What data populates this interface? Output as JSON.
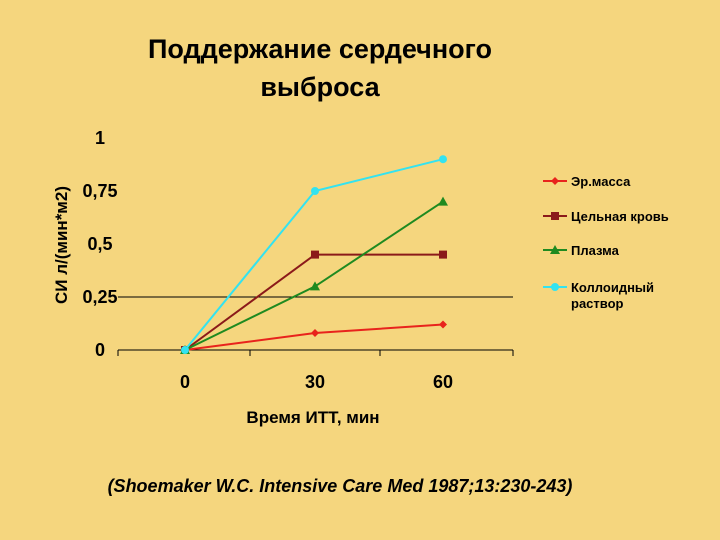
{
  "title_line1": "Поддержание сердечного",
  "title_line2": "выброса",
  "citation": "(Shoemaker W.C. Intensive Care Med 1987;13:230-243)",
  "chart_data": {
    "type": "line",
    "xlabel": "Время ИТТ, мин",
    "ylabel": "СИ л/(мин*м2)",
    "categories": [
      "0",
      "30",
      "60"
    ],
    "yticks": [
      "0",
      "0,25",
      "0,5",
      "0,75",
      "1"
    ],
    "ylim": [
      0,
      1
    ],
    "grid": "horizontal lines at 0.25",
    "legend": "right",
    "series": [
      {
        "name": "Эр.масса",
        "values": [
          0,
          0.08,
          0.12
        ],
        "color": "#e8231c",
        "marker": "diamond"
      },
      {
        "name": "Цельная кровь",
        "values": [
          0,
          0.45,
          0.45
        ],
        "color": "#8b1a1a",
        "marker": "square"
      },
      {
        "name": "Плазма",
        "values": [
          0,
          0.3,
          0.7
        ],
        "color": "#1f8a20",
        "marker": "triangle"
      },
      {
        "name": "Коллоидный раствор",
        "values": [
          0,
          0.75,
          0.9
        ],
        "color": "#33e3f0",
        "marker": "circle"
      }
    ]
  }
}
